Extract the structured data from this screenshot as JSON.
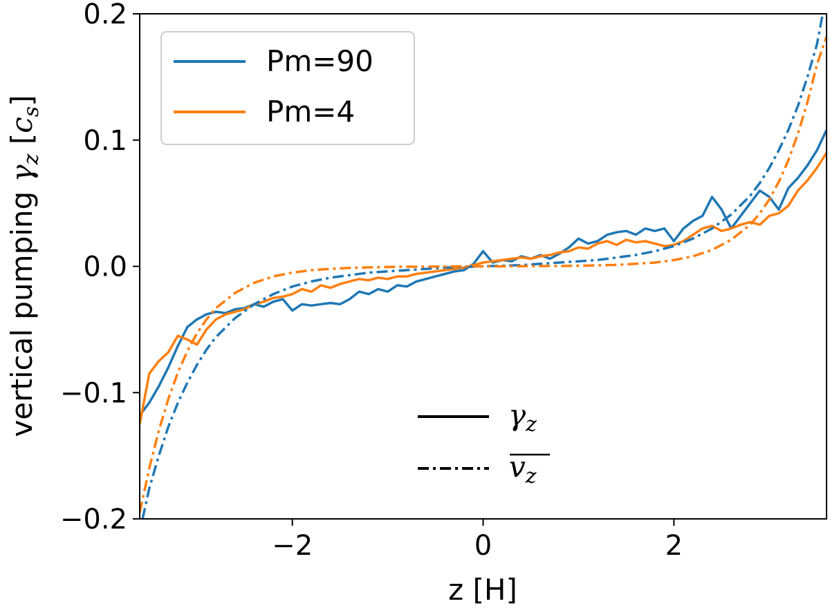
{
  "chart_data": {
    "type": "line",
    "xlabel": "z [H]",
    "ylabel_prefix": "vertical pumping ",
    "ylabel_symbol": "γ",
    "ylabel_subscript": "z",
    "ylabel_unit_open": " [",
    "ylabel_unit_symbol": "c",
    "ylabel_unit_subscript": "s",
    "ylabel_unit_close": "]",
    "xlim": [
      -3.6,
      3.6
    ],
    "ylim": [
      -0.2,
      0.2
    ],
    "x_ticks": [
      -2,
      0,
      2
    ],
    "x_tick_labels": [
      "−2",
      "0",
      "2"
    ],
    "y_ticks": [
      -0.2,
      -0.1,
      0.0,
      0.1,
      0.2
    ],
    "y_tick_labels": [
      "−0.2",
      "−0.1",
      "0.0",
      "0.1",
      "0.2"
    ],
    "grid": false,
    "colors": {
      "Pm=90": "#1f77b4",
      "Pm=4": "#ff7f0e"
    },
    "legend_series": {
      "placement": "top-left",
      "entries": [
        {
          "label": "Pm=90",
          "color": "#1f77b4"
        },
        {
          "label": "Pm=4",
          "color": "#ff7f0e"
        }
      ]
    },
    "legend_linestyles": {
      "placement": "lower-center",
      "entries": [
        {
          "style": "solid",
          "symbol": "γ",
          "subscript": "z"
        },
        {
          "style": "dashdot",
          "symbol": "v",
          "subscript": "z",
          "overline": true
        }
      ]
    },
    "series": [
      {
        "name": "Pm=90",
        "style": "solid",
        "color": "#1f77b4",
        "x": [
          -3.6,
          -3.5,
          -3.4,
          -3.3,
          -3.2,
          -3.1,
          -3.0,
          -2.9,
          -2.8,
          -2.7,
          -2.6,
          -2.5,
          -2.4,
          -2.3,
          -2.2,
          -2.1,
          -2.0,
          -1.9,
          -1.8,
          -1.7,
          -1.6,
          -1.5,
          -1.4,
          -1.3,
          -1.2,
          -1.1,
          -1.0,
          -0.9,
          -0.8,
          -0.7,
          -0.6,
          -0.5,
          -0.4,
          -0.3,
          -0.2,
          -0.1,
          0.0,
          0.1,
          0.2,
          0.3,
          0.4,
          0.5,
          0.6,
          0.7,
          0.8,
          0.9,
          1.0,
          1.1,
          1.2,
          1.3,
          1.4,
          1.5,
          1.6,
          1.7,
          1.8,
          1.9,
          2.0,
          2.1,
          2.2,
          2.3,
          2.4,
          2.5,
          2.6,
          2.7,
          2.8,
          2.9,
          3.0,
          3.1,
          3.2,
          3.3,
          3.4,
          3.5,
          3.6
        ],
        "y": [
          -0.118,
          -0.108,
          -0.095,
          -0.08,
          -0.063,
          -0.048,
          -0.042,
          -0.038,
          -0.036,
          -0.037,
          -0.034,
          -0.033,
          -0.03,
          -0.032,
          -0.028,
          -0.026,
          -0.035,
          -0.03,
          -0.031,
          -0.03,
          -0.029,
          -0.03,
          -0.026,
          -0.02,
          -0.022,
          -0.018,
          -0.02,
          -0.015,
          -0.016,
          -0.012,
          -0.01,
          -0.008,
          -0.006,
          -0.004,
          -0.003,
          0.002,
          0.012,
          0.003,
          0.005,
          0.004,
          0.008,
          0.006,
          0.009,
          0.006,
          0.01,
          0.015,
          0.022,
          0.018,
          0.02,
          0.025,
          0.027,
          0.028,
          0.025,
          0.03,
          0.028,
          0.03,
          0.02,
          0.03,
          0.036,
          0.04,
          0.055,
          0.045,
          0.03,
          0.04,
          0.05,
          0.06,
          0.055,
          0.045,
          0.062,
          0.07,
          0.08,
          0.092,
          0.108
        ]
      },
      {
        "name": "Pm=4",
        "style": "solid",
        "color": "#ff7f0e",
        "x": [
          -3.6,
          -3.5,
          -3.4,
          -3.3,
          -3.2,
          -3.1,
          -3.0,
          -2.9,
          -2.8,
          -2.7,
          -2.6,
          -2.5,
          -2.4,
          -2.3,
          -2.2,
          -2.1,
          -2.0,
          -1.9,
          -1.8,
          -1.7,
          -1.6,
          -1.5,
          -1.4,
          -1.3,
          -1.2,
          -1.1,
          -1.0,
          -0.9,
          -0.8,
          -0.7,
          -0.6,
          -0.5,
          -0.4,
          -0.3,
          -0.2,
          -0.1,
          0.0,
          0.1,
          0.2,
          0.3,
          0.4,
          0.5,
          0.6,
          0.7,
          0.8,
          0.9,
          1.0,
          1.1,
          1.2,
          1.3,
          1.4,
          1.5,
          1.6,
          1.7,
          1.8,
          1.9,
          2.0,
          2.1,
          2.2,
          2.3,
          2.4,
          2.5,
          2.6,
          2.7,
          2.8,
          2.9,
          3.0,
          3.1,
          3.2,
          3.3,
          3.4,
          3.5,
          3.6
        ],
        "y": [
          -0.125,
          -0.085,
          -0.075,
          -0.068,
          -0.055,
          -0.058,
          -0.062,
          -0.05,
          -0.042,
          -0.038,
          -0.036,
          -0.034,
          -0.03,
          -0.028,
          -0.025,
          -0.024,
          -0.022,
          -0.018,
          -0.02,
          -0.015,
          -0.017,
          -0.014,
          -0.012,
          -0.01,
          -0.011,
          -0.009,
          -0.01,
          -0.008,
          -0.008,
          -0.006,
          -0.005,
          -0.004,
          -0.003,
          -0.002,
          -0.001,
          0.001,
          0.003,
          0.004,
          0.005,
          0.006,
          0.007,
          0.006,
          0.008,
          0.009,
          0.011,
          0.012,
          0.015,
          0.014,
          0.018,
          0.02,
          0.017,
          0.021,
          0.019,
          0.02,
          0.018,
          0.016,
          0.017,
          0.02,
          0.025,
          0.03,
          0.032,
          0.028,
          0.03,
          0.033,
          0.035,
          0.033,
          0.04,
          0.042,
          0.048,
          0.06,
          0.068,
          0.078,
          0.09
        ]
      },
      {
        "name": "Pm=90",
        "style": "dashdot",
        "color": "#1f77b4",
        "x": [
          -3.57,
          -3.5,
          -3.4,
          -3.3,
          -3.2,
          -3.1,
          -3.0,
          -2.9,
          -2.8,
          -2.6,
          -2.4,
          -2.2,
          -2.0,
          -1.8,
          -1.6,
          -1.4,
          -1.2,
          -1.0,
          -0.8,
          -0.6,
          -0.4,
          -0.2,
          0.0,
          0.2,
          0.4,
          0.6,
          0.8,
          1.0,
          1.2,
          1.4,
          1.6,
          1.8,
          2.0,
          2.2,
          2.4,
          2.6,
          2.8,
          2.9,
          3.0,
          3.1,
          3.2,
          3.3,
          3.4,
          3.5,
          3.56
        ],
        "y": [
          -0.2,
          -0.176,
          -0.15,
          -0.127,
          -0.108,
          -0.092,
          -0.078,
          -0.066,
          -0.056,
          -0.041,
          -0.03,
          -0.022,
          -0.016,
          -0.012,
          -0.009,
          -0.007,
          -0.005,
          -0.004,
          -0.003,
          -0.002,
          -0.001,
          -0.0005,
          0.0,
          0.0005,
          0.001,
          0.002,
          0.003,
          0.004,
          0.005,
          0.007,
          0.009,
          0.012,
          0.016,
          0.022,
          0.03,
          0.041,
          0.056,
          0.066,
          0.078,
          0.092,
          0.108,
          0.127,
          0.15,
          0.176,
          0.2
        ]
      },
      {
        "name": "Pm=4",
        "style": "dashdot",
        "color": "#ff7f0e",
        "x": [
          -3.6,
          -3.5,
          -3.4,
          -3.3,
          -3.2,
          -3.1,
          -3.0,
          -2.9,
          -2.8,
          -2.6,
          -2.4,
          -2.2,
          -2.0,
          -1.8,
          -1.6,
          -1.4,
          -1.2,
          -1.0,
          -0.8,
          -0.6,
          -0.4,
          -0.2,
          0.0,
          0.2,
          0.4,
          0.6,
          0.8,
          1.0,
          1.2,
          1.4,
          1.6,
          1.8,
          2.0,
          2.2,
          2.4,
          2.6,
          2.8,
          2.9,
          3.0,
          3.1,
          3.2,
          3.3,
          3.4,
          3.5,
          3.6
        ],
        "y": [
          -0.195,
          -0.16,
          -0.13,
          -0.105,
          -0.084,
          -0.067,
          -0.053,
          -0.042,
          -0.033,
          -0.021,
          -0.013,
          -0.008,
          -0.005,
          -0.003,
          -0.002,
          -0.0012,
          -0.0008,
          -0.0005,
          -0.0003,
          -0.0002,
          -0.0001,
          0.0,
          0.0,
          0.0,
          0.0001,
          0.0002,
          0.0003,
          0.0005,
          0.0008,
          0.0012,
          0.002,
          0.003,
          0.005,
          0.008,
          0.013,
          0.021,
          0.033,
          0.042,
          0.053,
          0.067,
          0.084,
          0.105,
          0.13,
          0.16,
          0.182
        ]
      }
    ]
  }
}
